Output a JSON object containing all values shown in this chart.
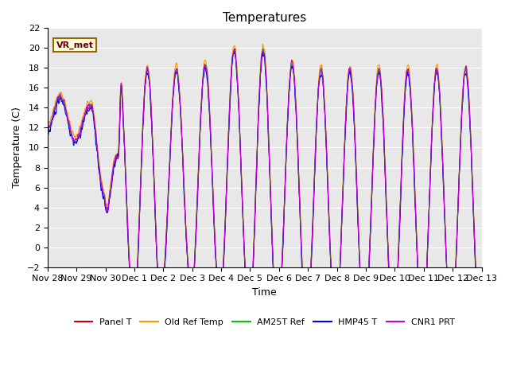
{
  "title": "Temperatures",
  "xlabel": "Time",
  "ylabel": "Temperature (C)",
  "ylim": [
    -2,
    22
  ],
  "yticks": [
    -2,
    0,
    2,
    4,
    6,
    8,
    10,
    12,
    14,
    16,
    18,
    20,
    22
  ],
  "xtick_labels": [
    "Nov 28",
    "Nov 29",
    "Nov 30",
    "Dec 1",
    "Dec 2",
    "Dec 3",
    "Dec 4",
    "Dec 5",
    "Dec 6",
    "Dec 7",
    "Dec 8",
    "Dec 9",
    "Dec 10",
    "Dec 11",
    "Dec 12",
    "Dec 13"
  ],
  "annotation": "VR_met",
  "legend": [
    "Panel T",
    "Old Ref Temp",
    "AM25T Ref",
    "HMP45 T",
    "CNR1 PRT"
  ],
  "colors": [
    "#cc0000",
    "#ff9900",
    "#00cc00",
    "#0000ff",
    "#cc00cc"
  ],
  "background_color": "#e8e8e8",
  "linewidth": 0.8,
  "n_points": 1536,
  "total_days": 15
}
